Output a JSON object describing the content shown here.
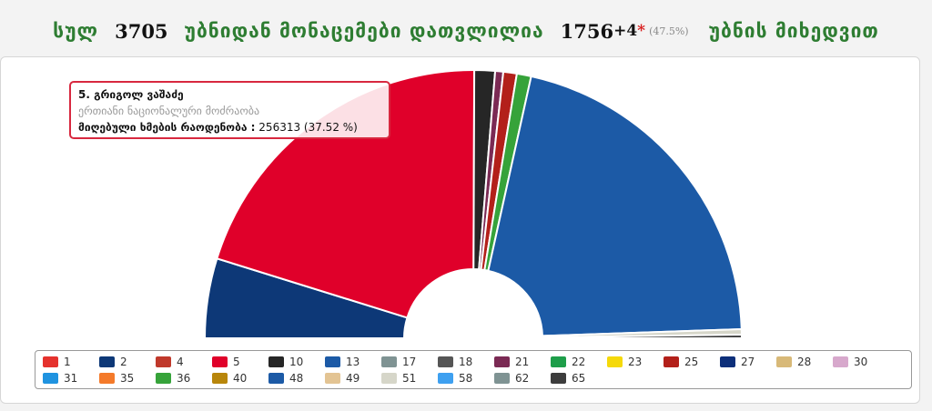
{
  "header": {
    "total_word": "სულ",
    "total_precincts": "3705",
    "mid_text": "უბნიდან მონაცემები დათვლილია",
    "counted": "1756",
    "counted_extra": "+4",
    "star": "*",
    "counted_pct": "(47.5%)",
    "tail_text": "უბნის მიხედვით"
  },
  "tooltip": {
    "name": "5. გრიგოლ ვაშაძე",
    "party": "ერთიანი ნაციონალური მოძრაობა",
    "votes_label": "მიღებული ხმების რაოდენობა :",
    "votes_value": "256313 (37.52 %)"
  },
  "chart_data": {
    "type": "pie",
    "variant": "semicircle",
    "series": [
      {
        "name": "2",
        "value": 8.9,
        "color": "#0d3877"
      },
      {
        "name": "5",
        "value": 37.52,
        "color": "#e0002a"
      },
      {
        "name": "10",
        "value": 2.3,
        "color": "#262626"
      },
      {
        "name": "21",
        "value": 0.9,
        "color": "#7b2a54"
      },
      {
        "name": "25",
        "value": 1.5,
        "color": "#b3201a"
      },
      {
        "name": "36",
        "value": 1.6,
        "color": "#36a33a"
      },
      {
        "name": "13",
        "value": 38.9,
        "color": "#1c5aa6"
      },
      {
        "name": "51",
        "value": 0.6,
        "color": "#d6d6c9"
      },
      {
        "name": "65",
        "value": 0.4,
        "color": "#3d3d3d"
      }
    ],
    "legend": [
      {
        "label": "1",
        "color": "#e5322d"
      },
      {
        "label": "2",
        "color": "#0d3877"
      },
      {
        "label": "4",
        "color": "#c0392b"
      },
      {
        "label": "5",
        "color": "#e0002a"
      },
      {
        "label": "10",
        "color": "#262626"
      },
      {
        "label": "13",
        "color": "#1c5aa6"
      },
      {
        "label": "17",
        "color": "#7f9393"
      },
      {
        "label": "18",
        "color": "#555555"
      },
      {
        "label": "21",
        "color": "#7b2a54"
      },
      {
        "label": "22",
        "color": "#1e9e4a"
      },
      {
        "label": "23",
        "color": "#f5d90a"
      },
      {
        "label": "25",
        "color": "#b3201a"
      },
      {
        "label": "27",
        "color": "#0d2f7a"
      },
      {
        "label": "28",
        "color": "#d8b978"
      },
      {
        "label": "30",
        "color": "#d7a8cc"
      },
      {
        "label": "31",
        "color": "#1f93e0"
      },
      {
        "label": "35",
        "color": "#f47a2a"
      },
      {
        "label": "36",
        "color": "#36a33a"
      },
      {
        "label": "40",
        "color": "#b8860b"
      },
      {
        "label": "48",
        "color": "#1c5aa6"
      },
      {
        "label": "49",
        "color": "#e3c493"
      },
      {
        "label": "51",
        "color": "#d6d6c9"
      },
      {
        "label": "58",
        "color": "#3ea0f0"
      },
      {
        "label": "62",
        "color": "#7f9393"
      },
      {
        "label": "65",
        "color": "#3d3d3d"
      }
    ],
    "legend_placement": "bottom",
    "highlighted": "5"
  }
}
